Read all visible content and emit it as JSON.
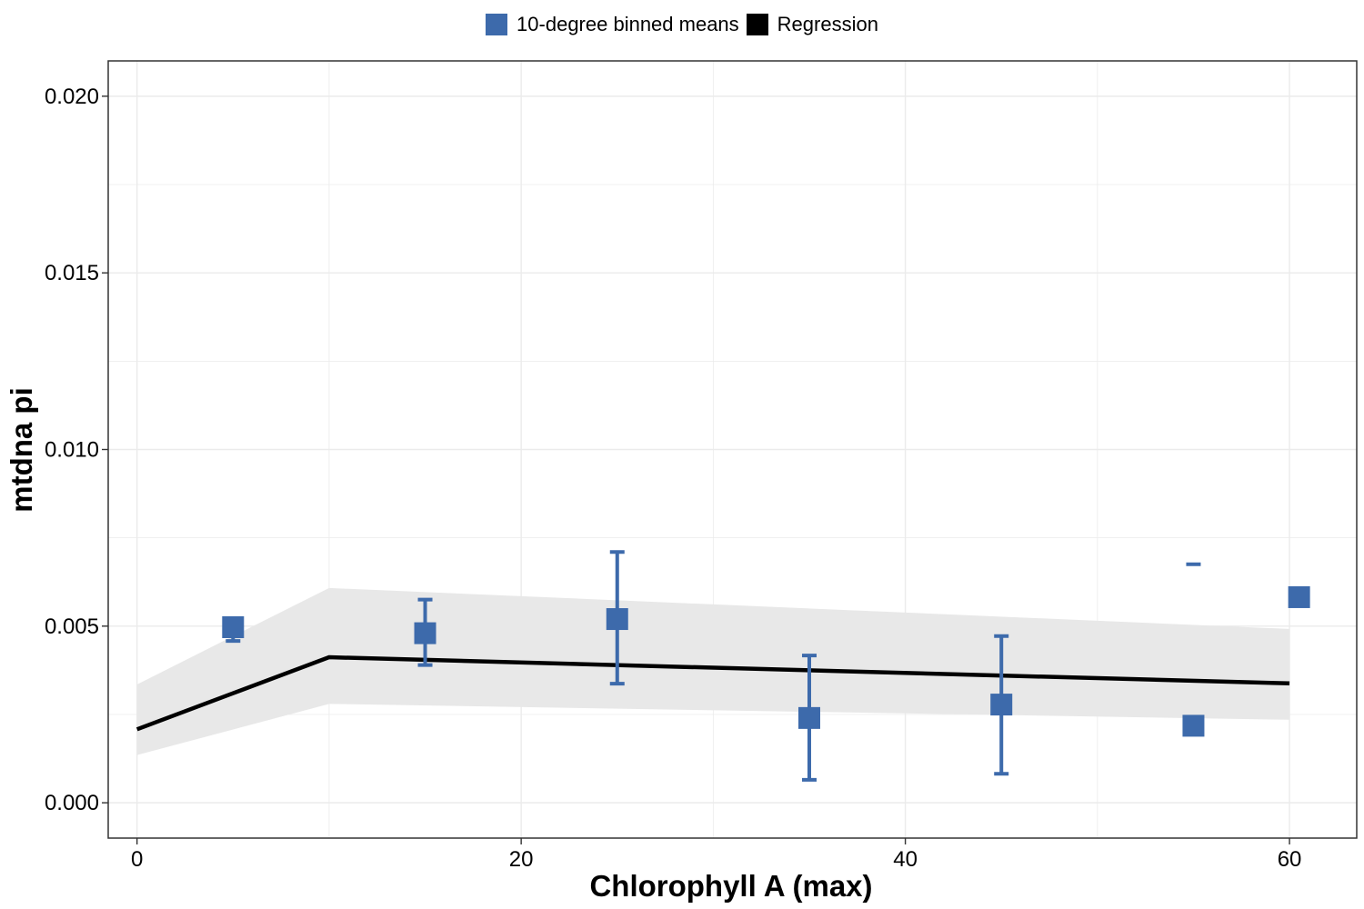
{
  "chart_data": {
    "type": "scatter",
    "xlabel": "Chlorophyll A (max)",
    "ylabel": "mtdna pi",
    "xlim": [
      -1.5,
      63.5
    ],
    "ylim": [
      -0.001,
      0.021
    ],
    "x_ticks": [
      0,
      20,
      40,
      60
    ],
    "x_tick_labels": [
      "0",
      "20",
      "40",
      "60"
    ],
    "y_ticks": [
      0.0,
      0.005,
      0.01,
      0.015,
      0.02
    ],
    "y_tick_labels": [
      "0.000",
      "0.005",
      "0.010",
      "0.015",
      "0.020"
    ],
    "grid": true,
    "legend_position": "top",
    "series": [
      {
        "name": "10-degree binned means",
        "kind": "points_with_errorbars",
        "color": "#3d6aab",
        "points": [
          {
            "x": 5,
            "y": 0.00497,
            "ymin": 0.00458,
            "ymax": 0.00515
          },
          {
            "x": 15,
            "y": 0.0048,
            "ymin": 0.0039,
            "ymax": 0.00575
          },
          {
            "x": 25,
            "y": 0.0052,
            "ymin": 0.00337,
            "ymax": 0.0071
          },
          {
            "x": 35,
            "y": 0.0024,
            "ymin": 0.00065,
            "ymax": 0.00417
          },
          {
            "x": 45,
            "y": 0.00278,
            "ymin": 0.00082,
            "ymax": 0.00472
          },
          {
            "x": 55,
            "y": 0.00218,
            "ymin": null,
            "ymax": 0.00675
          },
          {
            "x": 60.5,
            "y": 0.00582,
            "ymin": null,
            "ymax": null
          }
        ]
      },
      {
        "name": "Regression",
        "kind": "line_with_ribbon",
        "color": "#000000",
        "ribbon_color": "#e8e8e8",
        "points": [
          {
            "x": 0,
            "y": 0.00208,
            "lo": 0.00135,
            "hi": 0.00335
          },
          {
            "x": 10,
            "y": 0.00412,
            "lo": 0.0028,
            "hi": 0.00608
          },
          {
            "x": 60,
            "y": 0.00338,
            "lo": 0.00235,
            "hi": 0.00492
          }
        ]
      }
    ]
  }
}
